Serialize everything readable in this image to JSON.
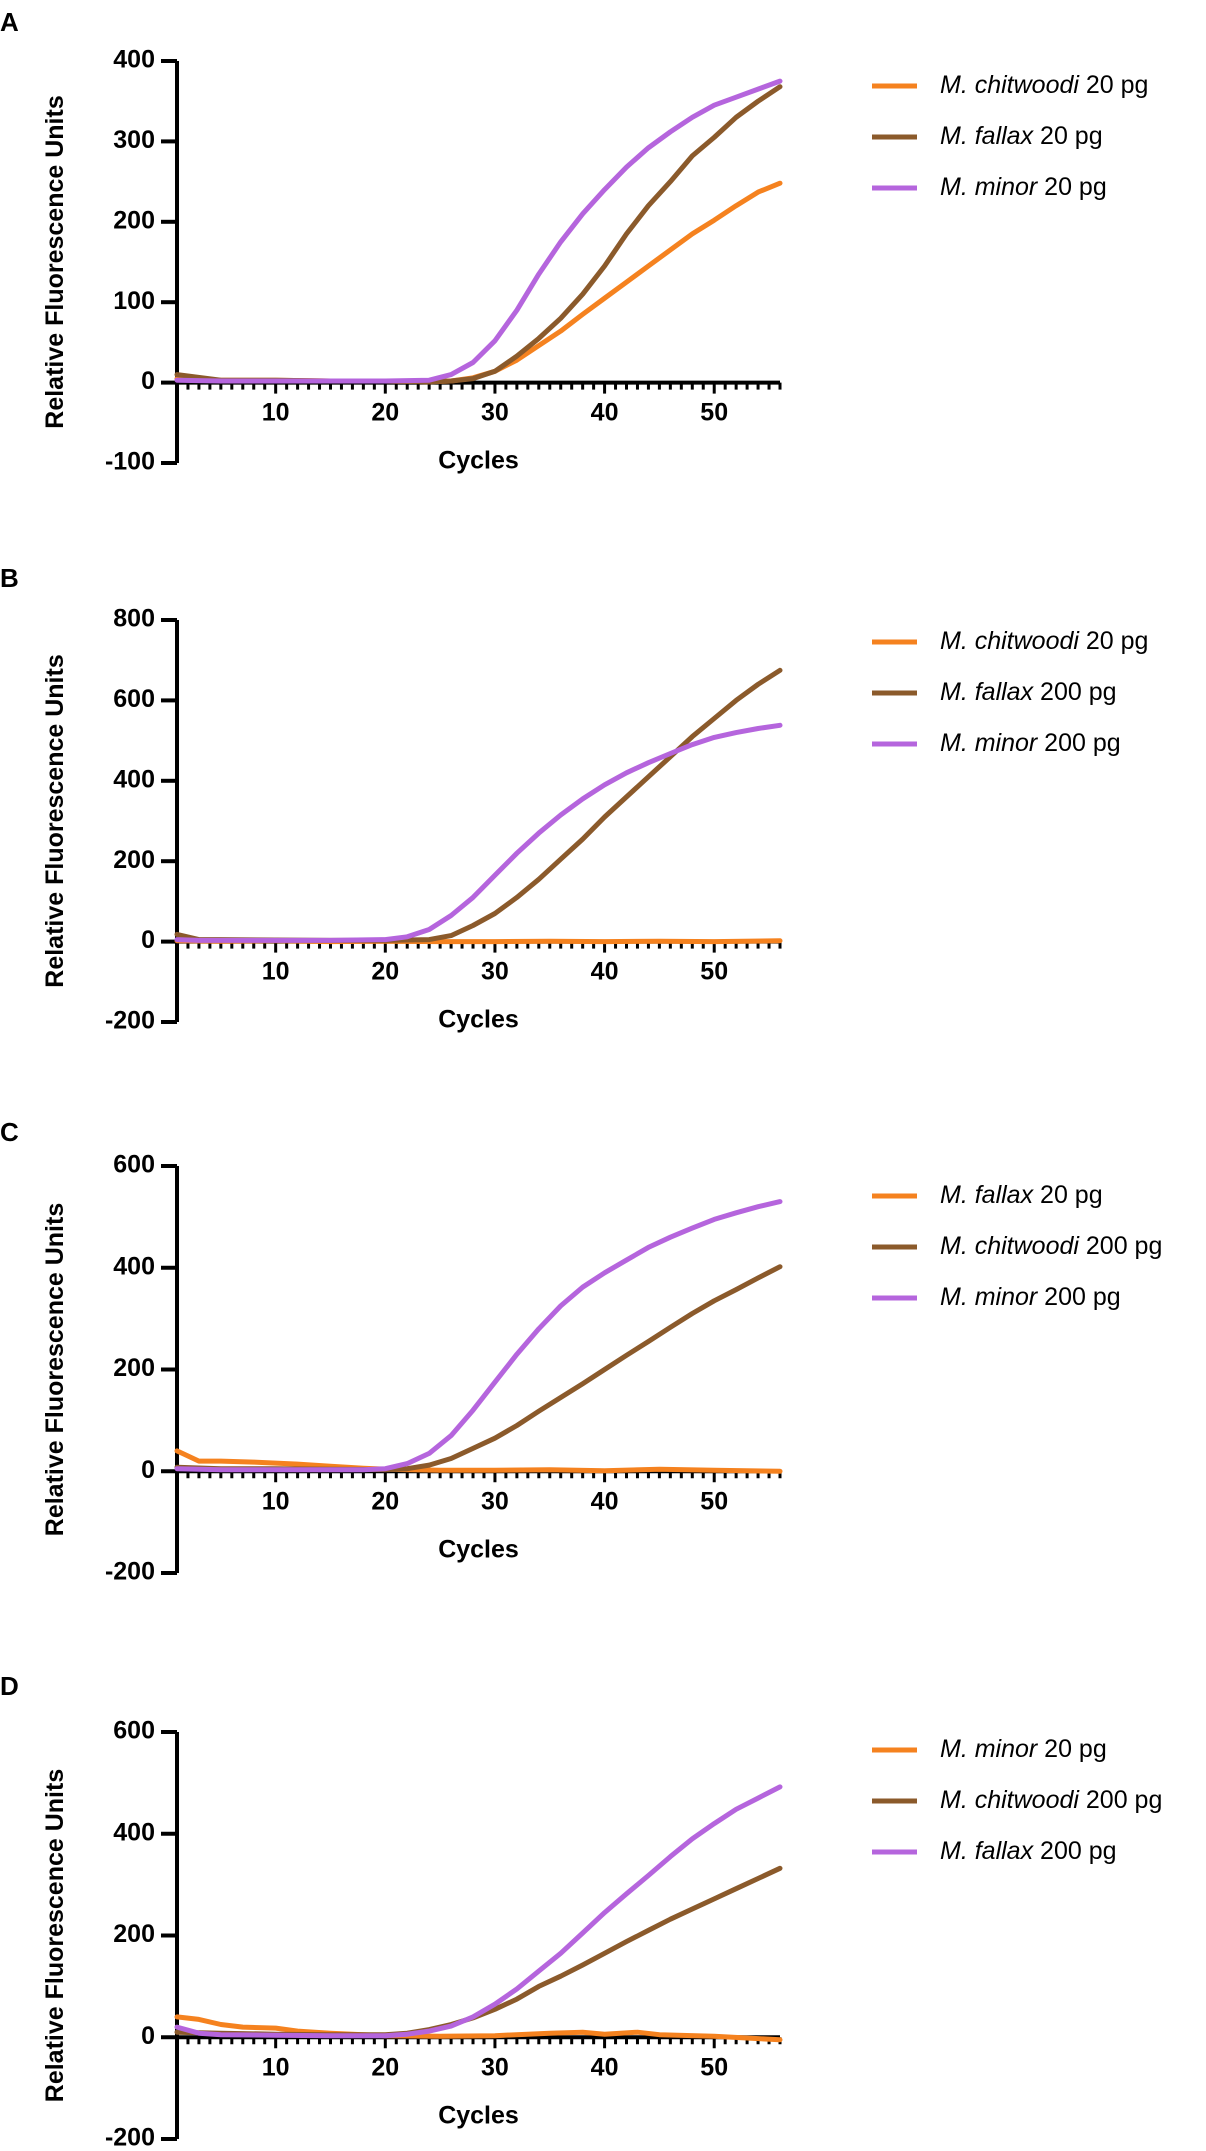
{
  "chart_data": [
    {
      "type": "line",
      "panel": "A",
      "xlabel": "Cycles",
      "ylabel": "Relative Fluorescence Units",
      "xlim": [
        1,
        56
      ],
      "ylim": [
        -100,
        400
      ],
      "yticks": [
        -100,
        0,
        100,
        200,
        300,
        400
      ],
      "xticks": [
        10,
        20,
        30,
        40,
        50
      ],
      "legend_position": "right",
      "series": [
        {
          "species": "M. chitwoodi",
          "amount": "20 pg",
          "color": "#F5821F",
          "x": [
            1,
            5,
            10,
            15,
            20,
            24,
            26,
            28,
            30,
            32,
            34,
            36,
            38,
            40,
            42,
            44,
            46,
            48,
            50,
            52,
            54,
            56
          ],
          "y": [
            5,
            3,
            3,
            2,
            2,
            1,
            2,
            6,
            14,
            28,
            46,
            64,
            85,
            105,
            125,
            145,
            165,
            185,
            202,
            220,
            237,
            248
          ]
        },
        {
          "species": "M. fallax",
          "amount": "20 pg",
          "color": "#8B5A2B",
          "x": [
            1,
            5,
            10,
            15,
            20,
            24,
            26,
            28,
            30,
            32,
            34,
            36,
            38,
            40,
            42,
            44,
            46,
            48,
            50,
            52,
            54,
            56
          ],
          "y": [
            10,
            3,
            3,
            2,
            2,
            1,
            2,
            5,
            14,
            33,
            55,
            80,
            110,
            145,
            185,
            220,
            250,
            282,
            305,
            330,
            350,
            368
          ]
        },
        {
          "species": "M. minor",
          "amount": "20 pg",
          "color": "#B565DD",
          "x": [
            1,
            5,
            10,
            15,
            20,
            24,
            26,
            28,
            30,
            32,
            34,
            36,
            38,
            40,
            42,
            44,
            46,
            48,
            50,
            52,
            54,
            56
          ],
          "y": [
            3,
            2,
            2,
            2,
            2,
            3,
            10,
            25,
            52,
            90,
            135,
            175,
            210,
            240,
            268,
            292,
            312,
            330,
            345,
            355,
            365,
            375
          ]
        }
      ]
    },
    {
      "type": "line",
      "panel": "B",
      "xlabel": "Cycles",
      "ylabel": "Relative Fluorescence Units",
      "xlim": [
        1,
        56
      ],
      "ylim": [
        -200,
        800
      ],
      "yticks": [
        -200,
        0,
        200,
        400,
        600,
        800
      ],
      "xticks": [
        10,
        20,
        30,
        40,
        50
      ],
      "legend_position": "right",
      "series": [
        {
          "species": "M. chitwoodi",
          "amount": "20 pg",
          "color": "#F5821F",
          "x": [
            1,
            5,
            10,
            15,
            20,
            25,
            30,
            35,
            40,
            45,
            50,
            56
          ],
          "y": [
            2,
            1,
            2,
            0,
            1,
            0,
            0,
            1,
            0,
            1,
            0,
            2
          ]
        },
        {
          "species": "M. fallax",
          "amount": "200 pg",
          "color": "#8B5A2B",
          "x": [
            1,
            3,
            5,
            10,
            15,
            20,
            24,
            26,
            28,
            30,
            32,
            34,
            36,
            38,
            40,
            42,
            44,
            46,
            48,
            50,
            52,
            54,
            56
          ],
          "y": [
            18,
            5,
            5,
            4,
            3,
            3,
            5,
            15,
            40,
            70,
            110,
            155,
            205,
            255,
            310,
            360,
            410,
            460,
            510,
            555,
            600,
            640,
            675
          ]
        },
        {
          "species": "M. minor",
          "amount": "200 pg",
          "color": "#B565DD",
          "x": [
            1,
            3,
            5,
            10,
            15,
            20,
            22,
            24,
            26,
            28,
            30,
            32,
            34,
            36,
            38,
            40,
            42,
            44,
            46,
            48,
            50,
            52,
            54,
            56
          ],
          "y": [
            5,
            3,
            3,
            3,
            3,
            5,
            12,
            30,
            65,
            110,
            165,
            220,
            270,
            315,
            355,
            390,
            420,
            445,
            468,
            490,
            508,
            520,
            530,
            538
          ]
        }
      ]
    },
    {
      "type": "line",
      "panel": "C",
      "xlabel": "Cycles",
      "ylabel": "Relative Fluorescence Units",
      "xlim": [
        1,
        56
      ],
      "ylim": [
        -200,
        600
      ],
      "yticks": [
        -200,
        0,
        200,
        400,
        600
      ],
      "xticks": [
        10,
        20,
        30,
        40,
        50
      ],
      "legend_position": "right",
      "series": [
        {
          "species": "M. fallax",
          "amount": "20 pg",
          "color": "#F5821F",
          "x": [
            1,
            2,
            3,
            5,
            8,
            10,
            12,
            15,
            18,
            20,
            25,
            30,
            35,
            40,
            45,
            50,
            56
          ],
          "y": [
            40,
            30,
            20,
            20,
            18,
            16,
            14,
            10,
            6,
            4,
            2,
            2,
            3,
            1,
            4,
            2,
            0
          ]
        },
        {
          "species": "M. chitwoodi",
          "amount": "200 pg",
          "color": "#8B5A2B",
          "x": [
            1,
            5,
            10,
            15,
            20,
            22,
            24,
            26,
            28,
            30,
            32,
            34,
            36,
            38,
            40,
            42,
            44,
            46,
            48,
            50,
            52,
            54,
            56
          ],
          "y": [
            8,
            5,
            5,
            4,
            3,
            5,
            12,
            25,
            45,
            65,
            90,
            118,
            145,
            172,
            200,
            228,
            255,
            283,
            310,
            335,
            357,
            380,
            402
          ]
        },
        {
          "species": "M. minor",
          "amount": "200 pg",
          "color": "#B565DD",
          "x": [
            1,
            5,
            10,
            15,
            18,
            20,
            22,
            24,
            26,
            28,
            30,
            32,
            34,
            36,
            38,
            40,
            42,
            44,
            46,
            48,
            50,
            52,
            54,
            56
          ],
          "y": [
            5,
            3,
            3,
            3,
            3,
            5,
            15,
            35,
            70,
            120,
            175,
            230,
            280,
            325,
            362,
            390,
            415,
            440,
            460,
            478,
            495,
            508,
            520,
            530
          ]
        }
      ]
    },
    {
      "type": "line",
      "panel": "D",
      "xlabel": "Cycles",
      "ylabel": "Relative Fluorescence Units",
      "xlim": [
        1,
        56
      ],
      "ylim": [
        -200,
        600
      ],
      "yticks": [
        -200,
        0,
        200,
        400,
        600
      ],
      "xticks": [
        10,
        20,
        30,
        40,
        50
      ],
      "legend_position": "right",
      "series": [
        {
          "species": "M. minor",
          "amount": "20 pg",
          "color": "#F5821F",
          "x": [
            1,
            3,
            5,
            7,
            10,
            12,
            15,
            18,
            20,
            25,
            30,
            35,
            38,
            40,
            43,
            45,
            50,
            56
          ],
          "y": [
            40,
            35,
            25,
            20,
            18,
            12,
            8,
            5,
            3,
            2,
            3,
            8,
            10,
            6,
            10,
            5,
            2,
            -5
          ]
        },
        {
          "species": "M. chitwoodi",
          "amount": "200 pg",
          "color": "#8B5A2B",
          "x": [
            1,
            5,
            10,
            15,
            20,
            22,
            24,
            26,
            28,
            30,
            32,
            34,
            36,
            38,
            40,
            42,
            44,
            46,
            48,
            50,
            52,
            54,
            56
          ],
          "y": [
            10,
            8,
            6,
            5,
            5,
            8,
            15,
            25,
            38,
            55,
            75,
            100,
            120,
            142,
            165,
            188,
            210,
            232,
            252,
            272,
            292,
            312,
            332
          ]
        },
        {
          "species": "M. fallax",
          "amount": "200 pg",
          "color": "#B565DD",
          "x": [
            1,
            3,
            5,
            10,
            15,
            20,
            22,
            24,
            26,
            28,
            30,
            32,
            34,
            36,
            38,
            40,
            42,
            44,
            46,
            48,
            50,
            52,
            54,
            56
          ],
          "y": [
            20,
            8,
            5,
            4,
            3,
            3,
            6,
            12,
            22,
            40,
            65,
            95,
            130,
            165,
            205,
            245,
            282,
            318,
            355,
            390,
            420,
            448,
            470,
            492
          ]
        }
      ]
    }
  ]
}
